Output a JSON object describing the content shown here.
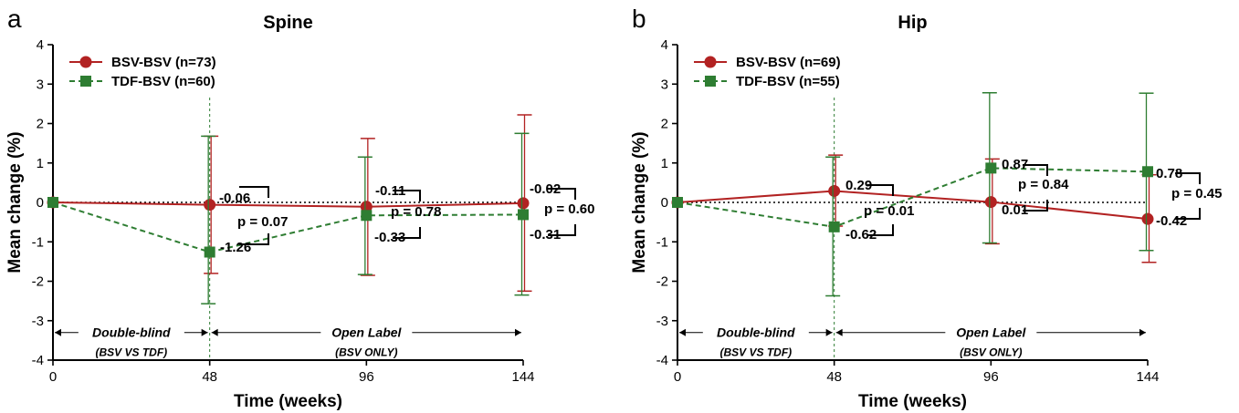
{
  "chart_data": [
    {
      "type": "line",
      "panel_letter": "a",
      "title": "Spine",
      "xlabel": "Time (weeks)",
      "ylabel": "Mean change (%)",
      "x": [
        0,
        48,
        96,
        144
      ],
      "xticks": [
        "0",
        "48",
        "96",
        "144"
      ],
      "xlim": [
        0,
        144
      ],
      "ylim": [
        -4,
        4
      ],
      "yticks": [
        "-4",
        "-3",
        "-2",
        "-1",
        "0",
        "1",
        "2",
        "3",
        "4"
      ],
      "legend_position": "top-left",
      "series": [
        {
          "name": "BSV-BSV (n=73)",
          "color": "#b22222",
          "marker": "circle",
          "linestyle": "solid",
          "values": [
            0,
            -0.06,
            -0.11,
            -0.02
          ],
          "error_low": [
            0,
            -1.8,
            -1.85,
            -2.25
          ],
          "error_high": [
            0,
            1.68,
            1.62,
            2.22
          ]
        },
        {
          "name": "TDF-BSV (n=60)",
          "color": "#2e7d32",
          "marker": "square",
          "linestyle": "dashed",
          "values": [
            0,
            -1.26,
            -0.33,
            -0.31
          ],
          "error_low": [
            0,
            -2.57,
            -1.83,
            -2.35
          ],
          "error_high": [
            0,
            1.68,
            1.15,
            1.75
          ]
        }
      ],
      "labels_bsv": [
        "-0.06",
        "-0.11",
        "-0.02"
      ],
      "labels_tdf": [
        "-1.26",
        "-0.33",
        "-0.31"
      ],
      "p_values": [
        "p = 0.07",
        "p = 0.78",
        "p = 0.60"
      ],
      "periods": [
        {
          "label": "Double-blind",
          "sub": "(BSV VS TDF)"
        },
        {
          "label": "Open Label",
          "sub": "(BSV ONLY)"
        }
      ]
    },
    {
      "type": "line",
      "panel_letter": "b",
      "title": "Hip",
      "xlabel": "Time (weeks)",
      "ylabel": "Mean change (%)",
      "x": [
        0,
        48,
        96,
        144
      ],
      "xticks": [
        "0",
        "48",
        "96",
        "144"
      ],
      "xlim": [
        0,
        144
      ],
      "ylim": [
        -4,
        4
      ],
      "yticks": [
        "-4",
        "-3",
        "-2",
        "-1",
        "0",
        "1",
        "2",
        "3",
        "4"
      ],
      "legend_position": "top-left",
      "series": [
        {
          "name": "BSV-BSV (n=69)",
          "color": "#b22222",
          "marker": "circle",
          "linestyle": "solid",
          "values": [
            0,
            0.29,
            0.01,
            -0.42
          ],
          "error_low": [
            0,
            -0.6,
            -1.05,
            -1.52
          ],
          "error_high": [
            0,
            1.2,
            1.1,
            0.7
          ]
        },
        {
          "name": "TDF-BSV (n=55)",
          "color": "#2e7d32",
          "marker": "square",
          "linestyle": "dashed",
          "values": [
            0,
            -0.62,
            0.87,
            0.78
          ],
          "error_low": [
            0,
            -2.37,
            -1.03,
            -1.22
          ],
          "error_high": [
            0,
            1.15,
            2.78,
            2.77
          ]
        }
      ],
      "labels_bsv": [
        "0.29",
        "0.01",
        "-0.42"
      ],
      "labels_tdf": [
        "-0.62",
        "0.87",
        "0.78"
      ],
      "p_values": [
        "p = 0.01",
        "p = 0.84",
        "p = 0.45"
      ],
      "periods": [
        {
          "label": "Double-blind",
          "sub": "(BSV VS TDF)"
        },
        {
          "label": "Open Label",
          "sub": "(BSV ONLY)"
        }
      ]
    }
  ]
}
